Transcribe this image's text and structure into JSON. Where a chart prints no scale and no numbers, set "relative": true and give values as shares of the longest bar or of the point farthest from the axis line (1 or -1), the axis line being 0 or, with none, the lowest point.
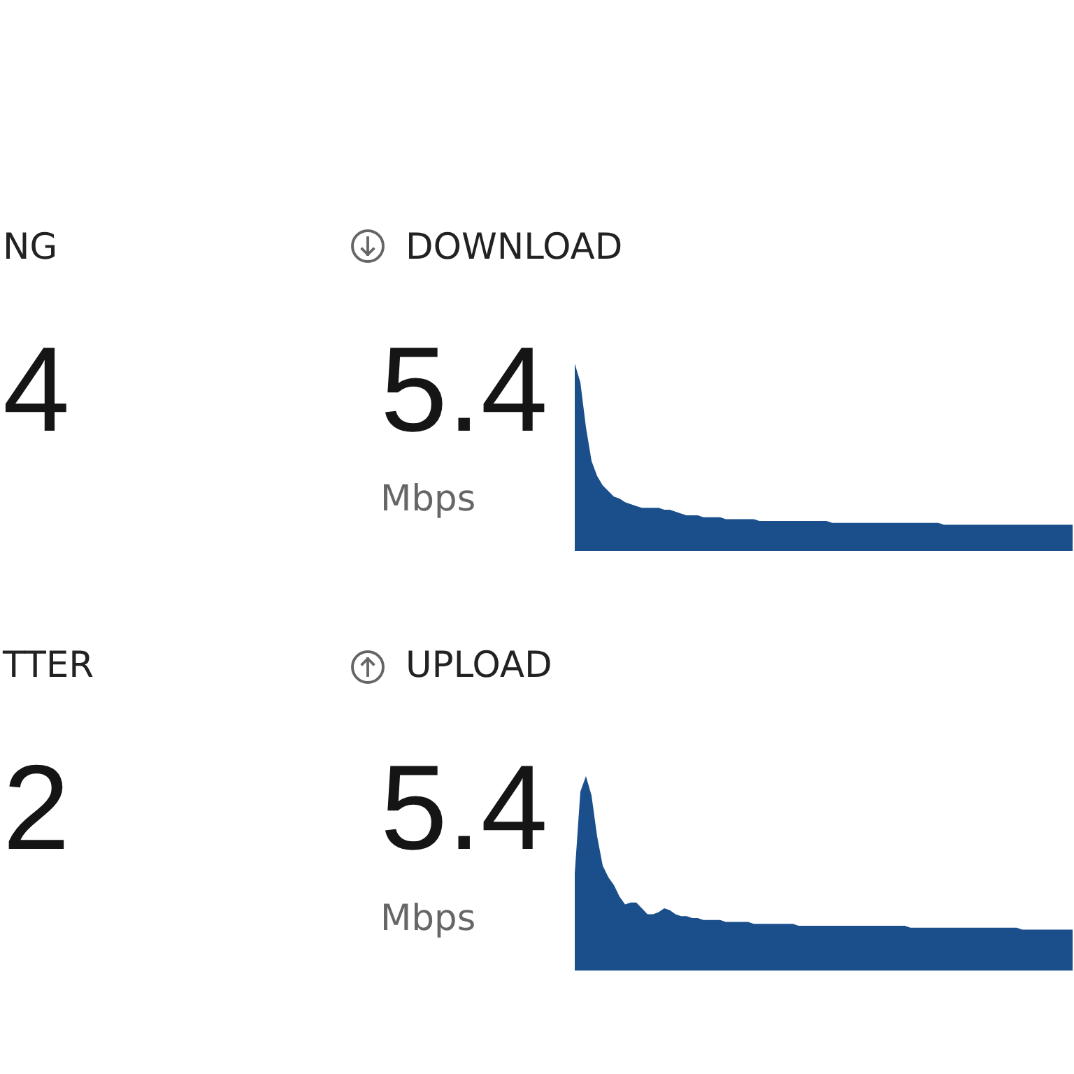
{
  "chart_data": [
    {
      "type": "other",
      "title": "NG",
      "annotations": [
        "4"
      ]
    },
    {
      "type": "area",
      "title": "DOWNLOAD",
      "annotations": [
        "5.4",
        "Mbps"
      ],
      "relative": true,
      "color": "#1a4f8b",
      "categories": [
        null,
        null,
        null,
        null,
        null,
        null,
        null,
        null,
        null,
        null,
        null,
        null,
        null,
        null,
        null,
        null,
        null,
        null,
        null,
        null,
        null,
        null,
        null,
        null,
        null,
        null,
        null,
        null,
        null,
        null,
        null,
        null,
        null,
        null,
        null,
        null,
        null,
        null,
        null,
        null,
        null,
        null,
        null,
        null,
        null,
        null,
        null,
        null,
        null,
        null,
        null,
        null,
        null,
        null,
        null,
        null,
        null,
        null,
        null,
        null,
        null,
        null,
        null,
        null,
        null,
        null,
        null,
        null,
        null,
        null,
        null,
        null,
        null,
        null,
        null,
        null,
        null,
        null,
        null,
        null,
        null,
        null,
        null,
        null,
        null,
        null,
        null,
        null,
        null,
        null
      ],
      "values": [
        1.0,
        0.9,
        0.66,
        0.48,
        0.4,
        0.35,
        0.32,
        0.29,
        0.28,
        0.26,
        0.25,
        0.24,
        0.23,
        0.23,
        0.23,
        0.23,
        0.22,
        0.22,
        0.21,
        0.2,
        0.19,
        0.19,
        0.19,
        0.18,
        0.18,
        0.18,
        0.18,
        0.17,
        0.17,
        0.17,
        0.17,
        0.17,
        0.17,
        0.16,
        0.16,
        0.16,
        0.16,
        0.16,
        0.16,
        0.16,
        0.16,
        0.16,
        0.16,
        0.16,
        0.16,
        0.16,
        0.15,
        0.15,
        0.15,
        0.15,
        0.15,
        0.15,
        0.15,
        0.15,
        0.15,
        0.15,
        0.15,
        0.15,
        0.15,
        0.15,
        0.15,
        0.15,
        0.15,
        0.15,
        0.15,
        0.15,
        0.14,
        0.14,
        0.14,
        0.14,
        0.14,
        0.14,
        0.14,
        0.14,
        0.14,
        0.14,
        0.14,
        0.14,
        0.14,
        0.14,
        0.14,
        0.14,
        0.14,
        0.14,
        0.14,
        0.14,
        0.14,
        0.14,
        0.14,
        0.14
      ]
    },
    {
      "type": "other",
      "title": "TTER",
      "annotations": [
        "2"
      ]
    },
    {
      "type": "area",
      "title": "UPLOAD",
      "annotations": [
        "5.4",
        "Mbps"
      ],
      "relative": true,
      "color": "#1a4f8b",
      "categories": [
        null,
        null,
        null,
        null,
        null,
        null,
        null,
        null,
        null,
        null,
        null,
        null,
        null,
        null,
        null,
        null,
        null,
        null,
        null,
        null,
        null,
        null,
        null,
        null,
        null,
        null,
        null,
        null,
        null,
        null,
        null,
        null,
        null,
        null,
        null,
        null,
        null,
        null,
        null,
        null,
        null,
        null,
        null,
        null,
        null,
        null,
        null,
        null,
        null,
        null,
        null,
        null,
        null,
        null,
        null,
        null,
        null,
        null,
        null,
        null,
        null,
        null,
        null,
        null,
        null,
        null,
        null,
        null,
        null,
        null,
        null,
        null,
        null,
        null,
        null,
        null,
        null,
        null,
        null,
        null,
        null,
        null,
        null,
        null,
        null,
        null,
        null,
        null,
        null,
        null
      ],
      "values": [
        0.5,
        0.92,
        1.0,
        0.9,
        0.69,
        0.54,
        0.48,
        0.44,
        0.38,
        0.34,
        0.35,
        0.35,
        0.32,
        0.29,
        0.29,
        0.3,
        0.32,
        0.31,
        0.29,
        0.28,
        0.28,
        0.27,
        0.27,
        0.26,
        0.26,
        0.26,
        0.26,
        0.25,
        0.25,
        0.25,
        0.25,
        0.25,
        0.24,
        0.24,
        0.24,
        0.24,
        0.24,
        0.24,
        0.24,
        0.24,
        0.23,
        0.23,
        0.23,
        0.23,
        0.23,
        0.23,
        0.23,
        0.23,
        0.23,
        0.23,
        0.23,
        0.23,
        0.23,
        0.23,
        0.23,
        0.23,
        0.23,
        0.23,
        0.23,
        0.23,
        0.22,
        0.22,
        0.22,
        0.22,
        0.22,
        0.22,
        0.22,
        0.22,
        0.22,
        0.22,
        0.22,
        0.22,
        0.22,
        0.22,
        0.22,
        0.22,
        0.22,
        0.22,
        0.22,
        0.22,
        0.21,
        0.21,
        0.21,
        0.21,
        0.21,
        0.21,
        0.21,
        0.21,
        0.21,
        0.21
      ]
    }
  ]
}
